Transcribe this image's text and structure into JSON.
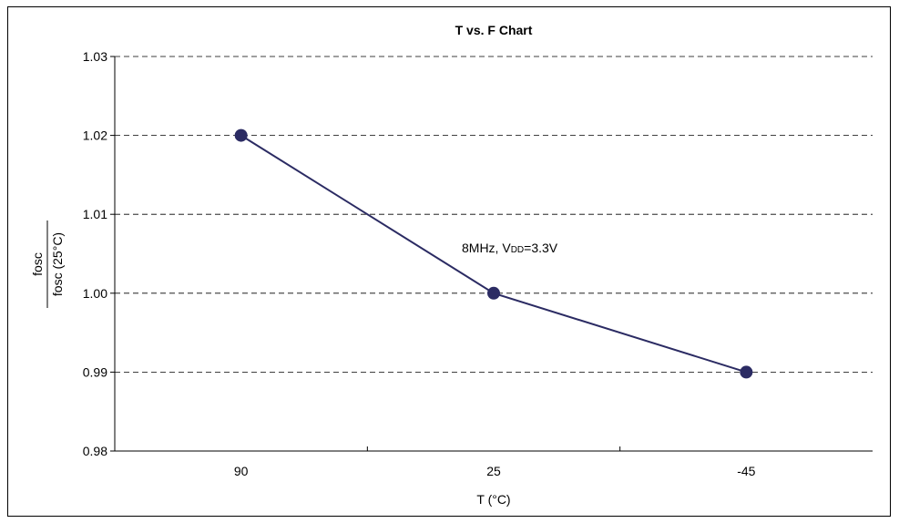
{
  "chart_data": {
    "type": "line",
    "title": "T vs. F Chart",
    "xlabel": "T (°C)",
    "ylabel_numerator": "fosc",
    "ylabel_denominator": "fosc (25°C)",
    "categories": [
      "90",
      "25",
      "-45"
    ],
    "series": [
      {
        "values": [
          1.02,
          1.0,
          0.99
        ],
        "color": "#2b2b63"
      }
    ],
    "ylim": [
      0.98,
      1.03
    ],
    "yticks": [
      "0.98",
      "0.99",
      "1.00",
      "1.01",
      "1.02",
      "1.03"
    ],
    "grid": "horizontal dashed",
    "annotation": {
      "prefix": "8MHz, V",
      "subscript": "DD",
      "suffix": "=3.3V"
    }
  }
}
